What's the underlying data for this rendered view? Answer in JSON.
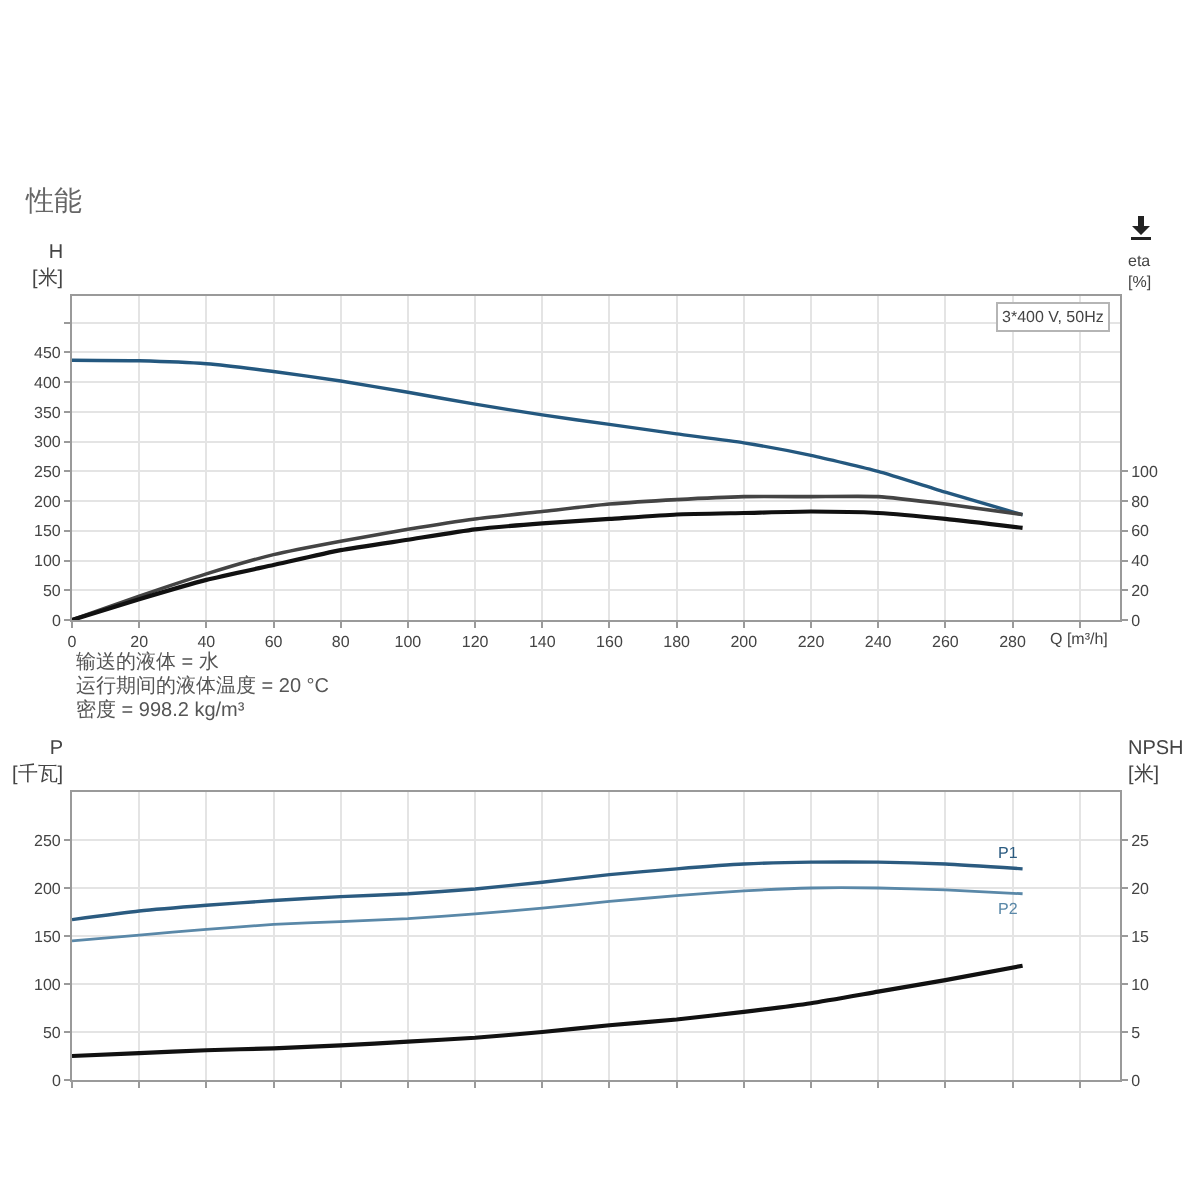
{
  "chart_data": [
    {
      "type": "line",
      "title": "性能",
      "xlabel": "Q [m³/h]",
      "ylabel": "H [米]",
      "y2label": "eta [%]",
      "x": [
        0,
        20,
        40,
        60,
        80,
        100,
        120,
        140,
        160,
        180,
        200,
        220,
        240,
        260,
        283
      ],
      "xlim": [
        0,
        312
      ],
      "xticks": [
        0,
        20,
        40,
        60,
        80,
        100,
        120,
        140,
        160,
        180,
        200,
        220,
        240,
        260,
        280,
        {
          "value": 300,
          "label": null
        }
      ],
      "ylim": [
        0,
        545
      ],
      "yticks": [
        0,
        50,
        100,
        150,
        200,
        250,
        300,
        350,
        400,
        450,
        {
          "value": 500,
          "label": null
        }
      ],
      "y2lim": [
        0,
        218
      ],
      "y2ticks": [
        0,
        20,
        40,
        60,
        80,
        100
      ],
      "grid": true,
      "legend": false,
      "marker": "none",
      "line_style": "solid",
      "series": [
        {
          "color": "#24587f",
          "values": [
            437,
            436,
            431,
            418,
            402,
            383,
            363,
            345,
            329,
            313,
            298,
            277,
            250,
            215,
            177
          ]
        },
        {
          "color": "#444444",
          "axis": "y2",
          "values": [
            0,
            16,
            31,
            44,
            53,
            61,
            68,
            73,
            78,
            81,
            83,
            83,
            83,
            78,
            71
          ]
        },
        {
          "color": "#111111",
          "axis": "y2",
          "values": [
            0,
            14,
            27,
            37,
            47,
            54,
            61,
            65,
            68,
            71,
            72,
            73,
            72,
            68,
            62
          ]
        }
      ],
      "annotations": [
        "3*400 V, 50Hz",
        "输送的液体 = 水",
        "运行期间的液体温度 = 20 °C",
        "密度 = 998.2 kg/m³"
      ]
    },
    {
      "type": "line",
      "ylabel": "P [千瓦]",
      "y2label": "NPSH [米]",
      "x": [
        0,
        20,
        40,
        60,
        80,
        100,
        120,
        140,
        160,
        180,
        200,
        220,
        240,
        260,
        283
      ],
      "xlim": [
        0,
        312
      ],
      "xticks": [
        0,
        20,
        40,
        60,
        80,
        100,
        120,
        140,
        160,
        180,
        200,
        220,
        240,
        260,
        280,
        300
      ],
      "ylim": [
        0,
        300
      ],
      "yticks": [
        0,
        50,
        100,
        150,
        200,
        250
      ],
      "y2lim": [
        0,
        30
      ],
      "y2ticks": [
        0,
        5,
        10,
        15,
        20,
        25
      ],
      "tick_labels": "y",
      "grid": true,
      "legend": false,
      "marker": "none",
      "line_style": "solid",
      "series": [
        {
          "name": "P1",
          "color": "#2b5b80",
          "values": [
            167,
            176,
            182,
            187,
            191,
            194,
            199,
            206,
            214,
            220,
            225,
            227,
            227,
            225,
            220
          ]
        },
        {
          "name": "P2",
          "color": "#5a88a8",
          "values": [
            145,
            151,
            157,
            162,
            165,
            168,
            173,
            179,
            186,
            192,
            197,
            200,
            200,
            198,
            194
          ]
        },
        {
          "color": "#111111",
          "axis": "y2",
          "values": [
            2.5,
            2.8,
            3.1,
            3.3,
            3.6,
            4.0,
            4.4,
            5.0,
            5.7,
            6.3,
            7.1,
            8.0,
            9.2,
            10.4,
            11.9
          ]
        }
      ]
    }
  ]
}
